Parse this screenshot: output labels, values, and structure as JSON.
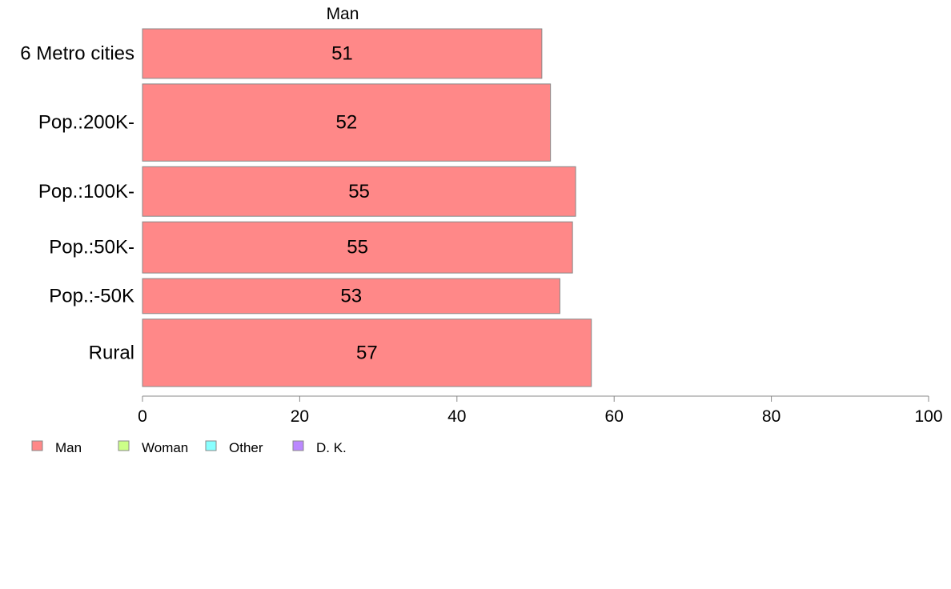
{
  "chart_data": {
    "type": "bar",
    "orientation": "horizontal",
    "series_title": "Man",
    "categories": [
      "6 Metro cities",
      "Pop.:200K-",
      "Pop.:100K-",
      "Pop.:50K-",
      "Pop.:-50K",
      "Rural"
    ],
    "series": [
      {
        "name": "Man",
        "color": "#ff8888",
        "values": [
          50.8,
          51.9,
          55.1,
          54.7,
          53.1,
          57.1
        ],
        "labels": [
          "51",
          "52",
          "55",
          "55",
          "53",
          "57"
        ]
      }
    ],
    "relative_bar_widths": [
      61,
      95,
      61,
      63,
      43,
      83
    ],
    "xlim": [
      0,
      100
    ],
    "x_ticks": [
      0,
      20,
      40,
      60,
      80,
      100
    ],
    "x_tick_labels": [
      "0",
      "20",
      "40",
      "60",
      "80",
      "100"
    ],
    "xlabel": "",
    "ylabel": "",
    "grid": false,
    "legend": {
      "position": "bottom-left",
      "items": [
        {
          "label": "Man",
          "color": "#ff8888"
        },
        {
          "label": "Woman",
          "color": "#ccff88"
        },
        {
          "label": "Other",
          "color": "#88ffff"
        },
        {
          "label": "D. K.",
          "color": "#bb88ff"
        }
      ]
    }
  }
}
